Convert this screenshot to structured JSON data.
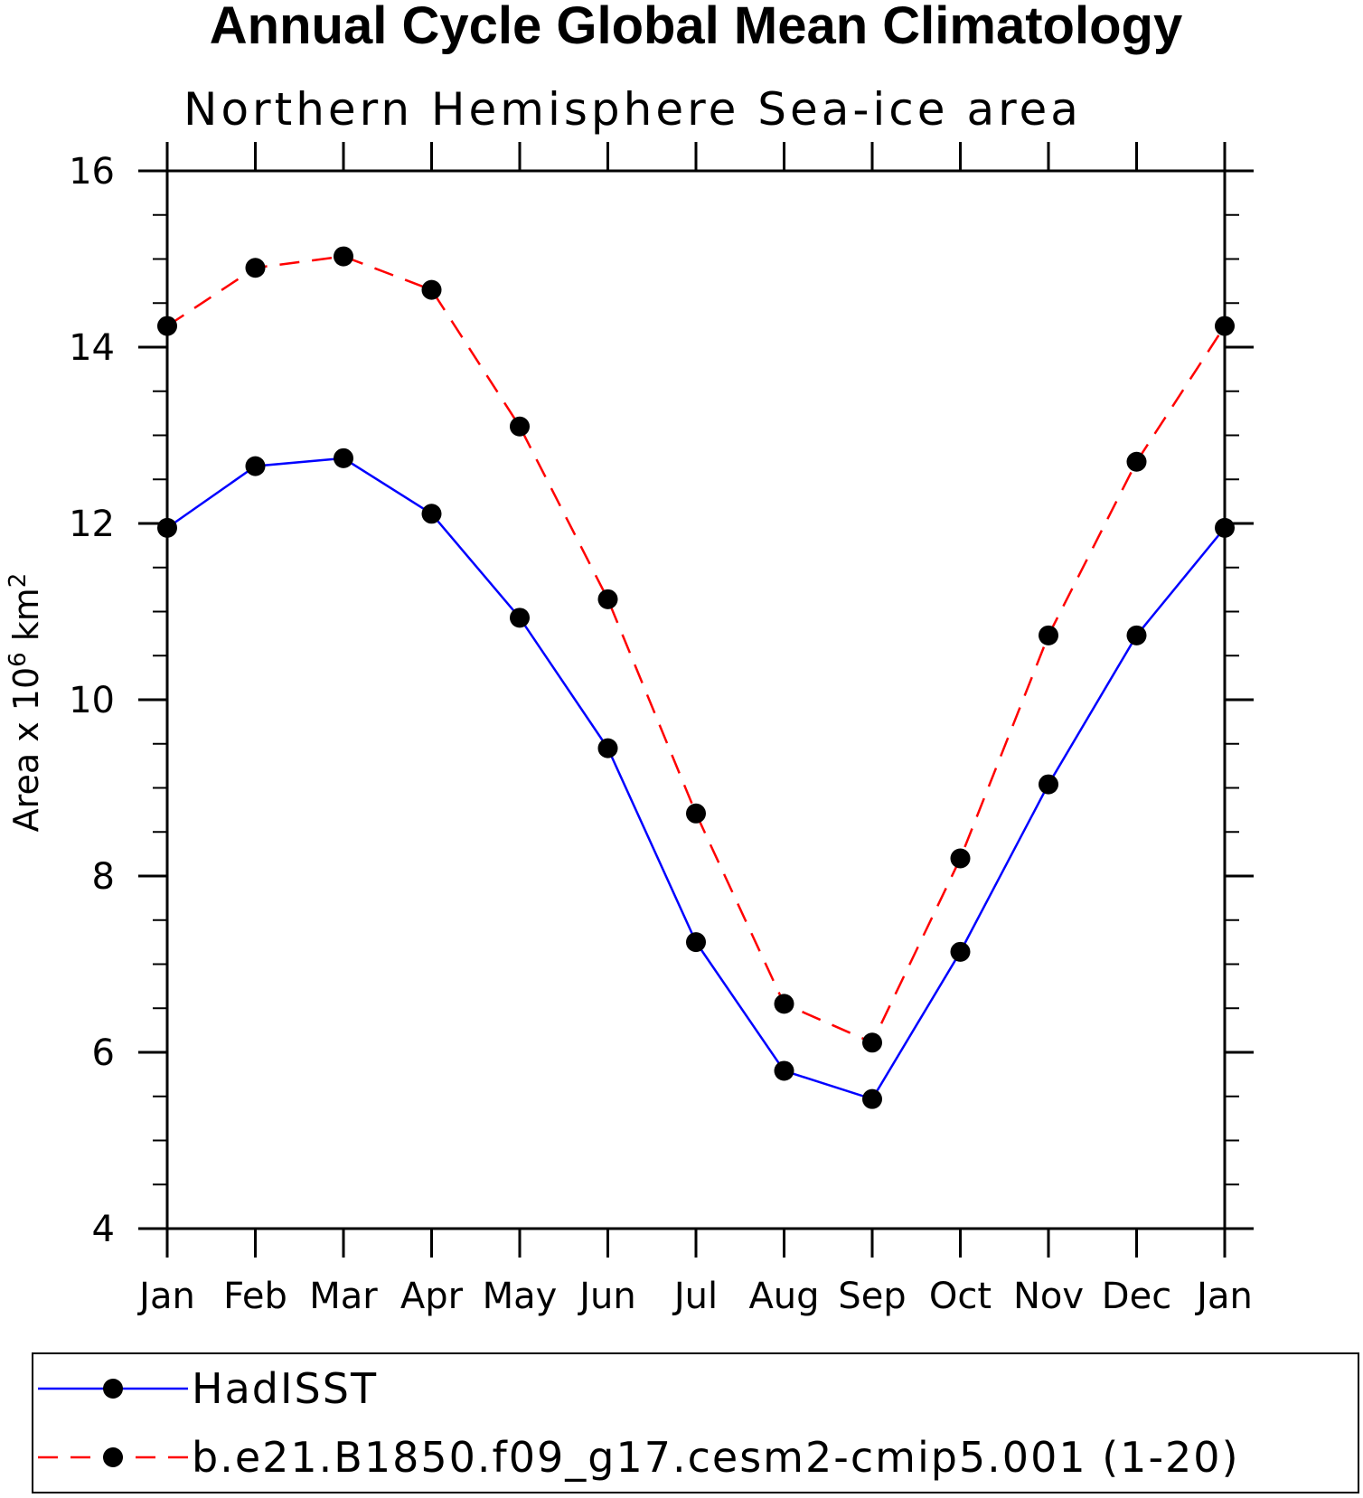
{
  "chart_data": {
    "type": "line",
    "title": "Annual Cycle Global Mean Climatology",
    "subtitle": "Northern Hemisphere Sea-ice area",
    "ylabel": "Area x 10",
    "ylabel_exp1": "6",
    "ylabel_unit": " km",
    "ylabel_exp2": "2",
    "xlabel": "",
    "categories": [
      "Jan",
      "Feb",
      "Mar",
      "Apr",
      "May",
      "Jun",
      "Jul",
      "Aug",
      "Sep",
      "Oct",
      "Nov",
      "Dec",
      "Jan"
    ],
    "ylim": [
      4,
      16
    ],
    "yticks": [
      4,
      6,
      8,
      10,
      12,
      14,
      16
    ],
    "grid": false,
    "legend_position": "bottom",
    "series": [
      {
        "name": "HadISST",
        "color": "#0000ff",
        "dash": "solid",
        "values": [
          11.95,
          12.65,
          12.74,
          12.11,
          10.93,
          9.45,
          7.25,
          5.79,
          5.47,
          7.14,
          9.04,
          10.73,
          11.95
        ]
      },
      {
        "name": "b.e21.B1850.f09_g17.cesm2-cmip5.001 (1-20)",
        "color": "#ff0000",
        "dash": "dashed",
        "values": [
          14.24,
          14.9,
          15.03,
          14.65,
          13.1,
          11.14,
          8.71,
          6.55,
          6.11,
          8.2,
          10.73,
          12.7,
          14.24
        ]
      }
    ]
  }
}
